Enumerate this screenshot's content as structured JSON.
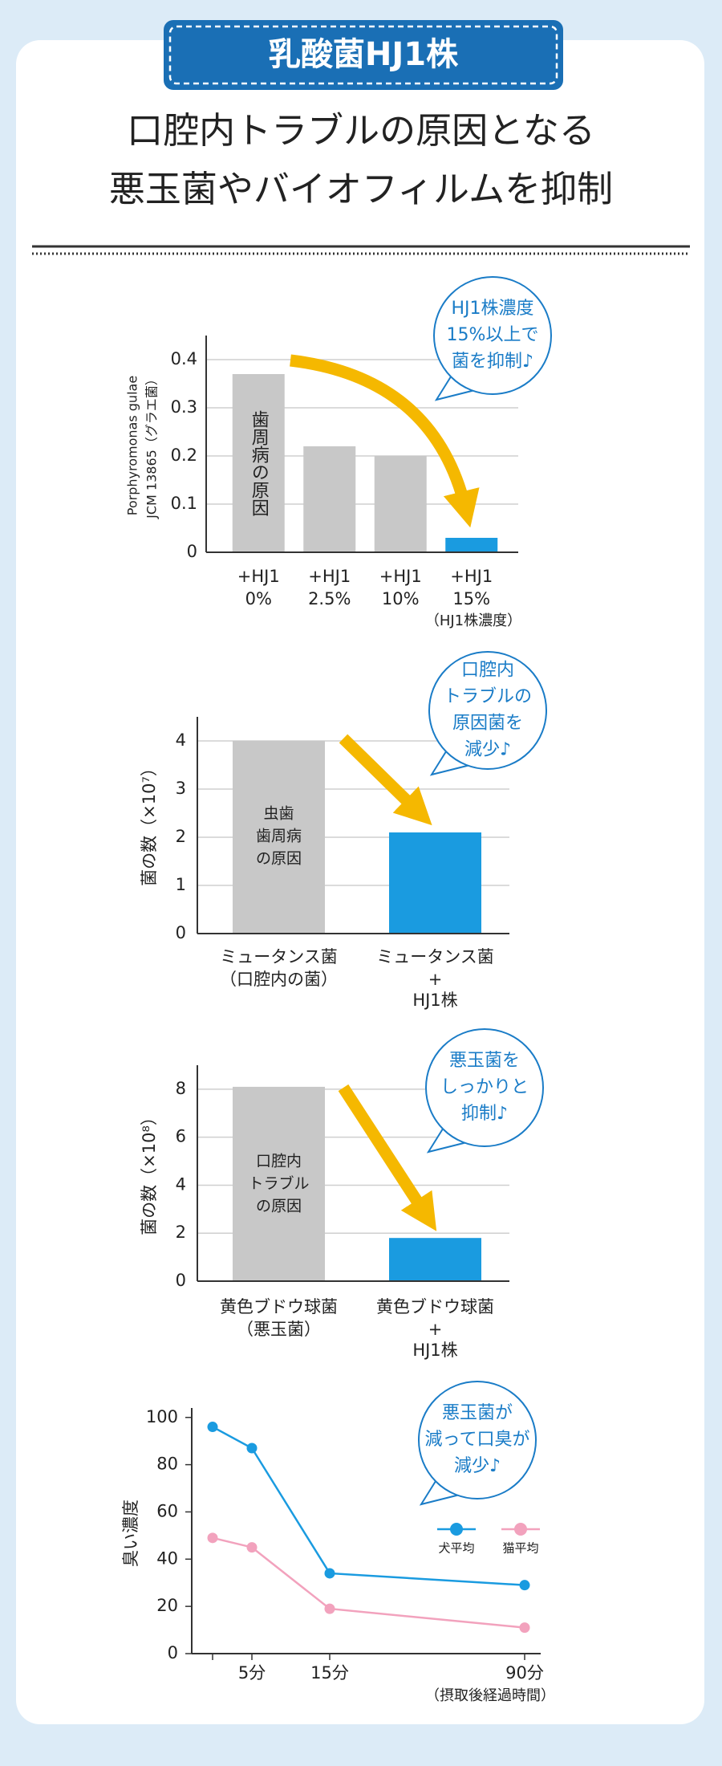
{
  "header": {
    "badge": "乳酸菌HJ1株",
    "title": [
      "口腔内トラブルの原因となる",
      "悪玉菌やバイオフィルムを抑制"
    ]
  },
  "chart_data": [
    {
      "type": "bar",
      "ylabel": [
        "Porphyromonas gulae",
        "JCM 13865（グラエ菌）"
      ],
      "categories": [
        [
          "+HJ1",
          "0%"
        ],
        [
          "+HJ1",
          "2.5%"
        ],
        [
          "+HJ1",
          "10%"
        ],
        [
          "+HJ1",
          "15%"
        ]
      ],
      "xlabel": "（HJ1株濃度）",
      "values": [
        0.37,
        0.22,
        0.2,
        0.03
      ],
      "colors": [
        "#c8c8c8",
        "#c8c8c8",
        "#c8c8c8",
        "#1a9be0"
      ],
      "ylim": [
        0,
        0.45
      ],
      "yticks": [
        0,
        0.1,
        0.2,
        0.3,
        0.4
      ],
      "grid": true,
      "bar_annotation": [
        "歯周病の原因"
      ],
      "annotation": [
        "HJ1株濃度",
        "15%以上で",
        "菌を抑制♪"
      ]
    },
    {
      "type": "bar",
      "ylabel": [
        "菌の数（×10⁷）"
      ],
      "categories": [
        [
          "ミュータンス菌",
          "（口腔内の菌）"
        ],
        [
          "ミュータンス菌",
          "+",
          "HJ1株"
        ]
      ],
      "values": [
        4.0,
        2.1
      ],
      "colors": [
        "#c8c8c8",
        "#1a9be0"
      ],
      "ylim": [
        0,
        4.5
      ],
      "yticks": [
        0,
        1,
        2,
        3,
        4
      ],
      "grid": true,
      "bar_annotation": [
        "虫歯",
        "歯周病",
        "の原因"
      ],
      "annotation": [
        "口腔内",
        "トラブルの",
        "原因菌を",
        "減少♪"
      ]
    },
    {
      "type": "bar",
      "ylabel": [
        "菌の数（×10⁸）"
      ],
      "categories": [
        [
          "黄色ブドウ球菌",
          "（悪玉菌）"
        ],
        [
          "黄色ブドウ球菌",
          "+",
          "HJ1株"
        ]
      ],
      "values": [
        8.1,
        1.8
      ],
      "colors": [
        "#c8c8c8",
        "#1a9be0"
      ],
      "ylim": [
        0,
        9
      ],
      "yticks": [
        0,
        2,
        4,
        6,
        8
      ],
      "grid": true,
      "bar_annotation": [
        "口腔内",
        "トラブル",
        "の原因"
      ],
      "annotation": [
        "悪玉菌を",
        "しっかりと",
        "抑制♪"
      ]
    },
    {
      "type": "line",
      "ylabel": [
        "臭い濃度"
      ],
      "categories": [
        null,
        "5分",
        "15分",
        "90分"
      ],
      "xlabel": "（摂取後経過時間）",
      "series": [
        {
          "name": "犬平均",
          "color": "#1a9be0",
          "values": [
            96,
            87,
            34,
            29
          ]
        },
        {
          "name": "猫平均",
          "color": "#f2a2bd",
          "values": [
            49,
            45,
            19,
            11
          ]
        }
      ],
      "ylim": [
        0,
        104
      ],
      "yticks": [
        0,
        20,
        40,
        60,
        80,
        100
      ],
      "grid": false,
      "annotation": [
        "悪玉菌が",
        "減って口臭が",
        "減少♪"
      ]
    }
  ]
}
